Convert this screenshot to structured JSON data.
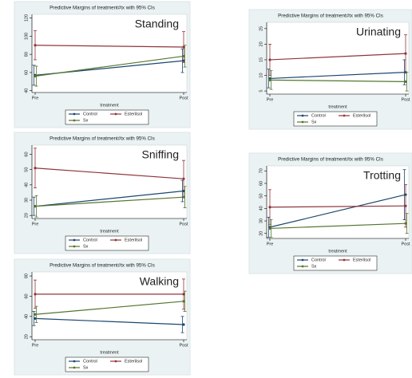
{
  "chart_data": [
    {
      "type": "line",
      "title": "Predictive Margins of treatment#tx with 95% CIs",
      "annotation": "Standing",
      "xlabel": "treatment",
      "categories": [
        "Pre",
        "Post"
      ],
      "ylim": [
        38,
        124
      ],
      "yticks": [
        40,
        60,
        80,
        100,
        120
      ],
      "series": [
        {
          "name": "Control",
          "color": "#1a476f",
          "values": [
            57,
            73
          ],
          "errors": [
            11,
            13
          ]
        },
        {
          "name": "Esterilsol",
          "color": "#90353b",
          "values": [
            90,
            88
          ],
          "errors": [
            16,
            17
          ]
        },
        {
          "name": "Sx",
          "color": "#55752f",
          "values": [
            56,
            78
          ],
          "errors": [
            11,
            12
          ]
        }
      ]
    },
    {
      "type": "line",
      "title": "Predictive Margins of treatment#tx with 95% CIs",
      "annotation": "Urinating",
      "xlabel": "treatment",
      "categories": [
        "Pre",
        "Post"
      ],
      "ylim": [
        4,
        27
      ],
      "yticks": [
        5,
        10,
        15,
        20,
        25
      ],
      "series": [
        {
          "name": "Control",
          "color": "#1a476f",
          "values": [
            9,
            11
          ],
          "errors": [
            3,
            4
          ]
        },
        {
          "name": "Esterilsol",
          "color": "#90353b",
          "values": [
            15,
            17
          ],
          "errors": [
            5,
            6
          ]
        },
        {
          "name": "Sx",
          "color": "#55752f",
          "values": [
            8.5,
            8
          ],
          "errors": [
            3,
            3
          ]
        }
      ]
    },
    {
      "type": "line",
      "title": "Predictive Margins of treatment#tx with 95% CIs",
      "annotation": "Sniffing",
      "xlabel": "treatment",
      "categories": [
        "Pre",
        "Post"
      ],
      "ylim": [
        18,
        66
      ],
      "yticks": [
        20,
        30,
        40,
        50,
        60
      ],
      "series": [
        {
          "name": "Control",
          "color": "#1a476f",
          "values": [
            26,
            36
          ],
          "errors": [
            6,
            7
          ]
        },
        {
          "name": "Esterilsol",
          "color": "#90353b",
          "values": [
            51,
            44
          ],
          "errors": [
            13,
            12
          ]
        },
        {
          "name": "Sx",
          "color": "#55752f",
          "values": [
            26,
            32
          ],
          "errors": [
            7,
            7
          ]
        }
      ]
    },
    {
      "type": "line",
      "title": "Predictive Margins of treatment#tx with 95% CIs",
      "annotation": "Trotting",
      "xlabel": "treatment",
      "categories": [
        "Pre",
        "Post"
      ],
      "ylim": [
        16,
        74
      ],
      "yticks": [
        20,
        30,
        40,
        50,
        60,
        70
      ],
      "series": [
        {
          "name": "Control",
          "color": "#1a476f",
          "values": [
            25,
            51
          ],
          "errors": [
            8,
            20
          ]
        },
        {
          "name": "Esterilsol",
          "color": "#90353b",
          "values": [
            41,
            42
          ],
          "errors": [
            14,
            17
          ]
        },
        {
          "name": "Sx",
          "color": "#55752f",
          "values": [
            24,
            28
          ],
          "errors": [
            7,
            8
          ]
        }
      ]
    },
    {
      "type": "line",
      "title": "Predictive Margins of treatment#tx with 95% CIs",
      "annotation": "Walking",
      "xlabel": "treatment",
      "categories": [
        "Pre",
        "Post"
      ],
      "ylim": [
        17,
        84
      ],
      "yticks": [
        20,
        40,
        60,
        80
      ],
      "series": [
        {
          "name": "Control",
          "color": "#1a476f",
          "values": [
            38,
            32
          ],
          "errors": [
            7,
            8
          ]
        },
        {
          "name": "Esterilsol",
          "color": "#90353b",
          "values": [
            62,
            62
          ],
          "errors": [
            14,
            15
          ]
        },
        {
          "name": "Sx",
          "color": "#55752f",
          "values": [
            42,
            55
          ],
          "errors": [
            8,
            10
          ]
        }
      ]
    }
  ]
}
